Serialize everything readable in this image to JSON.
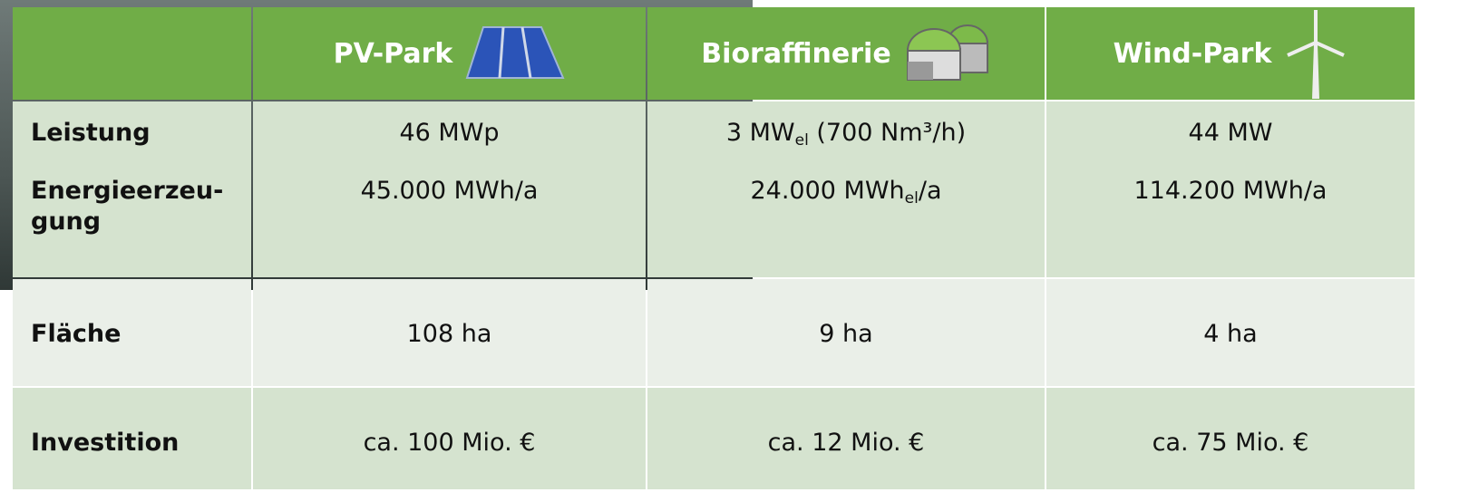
{
  "header": {
    "columns": [
      "PV-Park",
      "Bioraffinerie",
      "Wind-Park"
    ]
  },
  "table": {
    "rows": [
      {
        "label": [
          "Leistung"
        ],
        "values": [
          [
            "46 MWp"
          ],
          [
            "3 MW",
            "el",
            " (700 Nm³/h)"
          ],
          [
            "44 MW"
          ]
        ]
      },
      {
        "label": [
          "Energieerzeu-",
          "gung"
        ],
        "values": [
          [
            "45.000 MWh/a"
          ],
          [
            "24.000 MWh",
            "el",
            "/a"
          ],
          [
            "114.200 MWh/a"
          ]
        ]
      },
      {
        "label": [
          "Fläche"
        ],
        "values": [
          [
            "108 ha"
          ],
          [
            "9 ha"
          ],
          [
            "4 ha"
          ]
        ]
      },
      {
        "label": [
          "Investition"
        ],
        "values": [
          [
            "ca. 100 Mio. €"
          ],
          [
            "ca. 12 Mio. €"
          ],
          [
            "ca. 75 Mio. €"
          ]
        ]
      }
    ]
  }
}
